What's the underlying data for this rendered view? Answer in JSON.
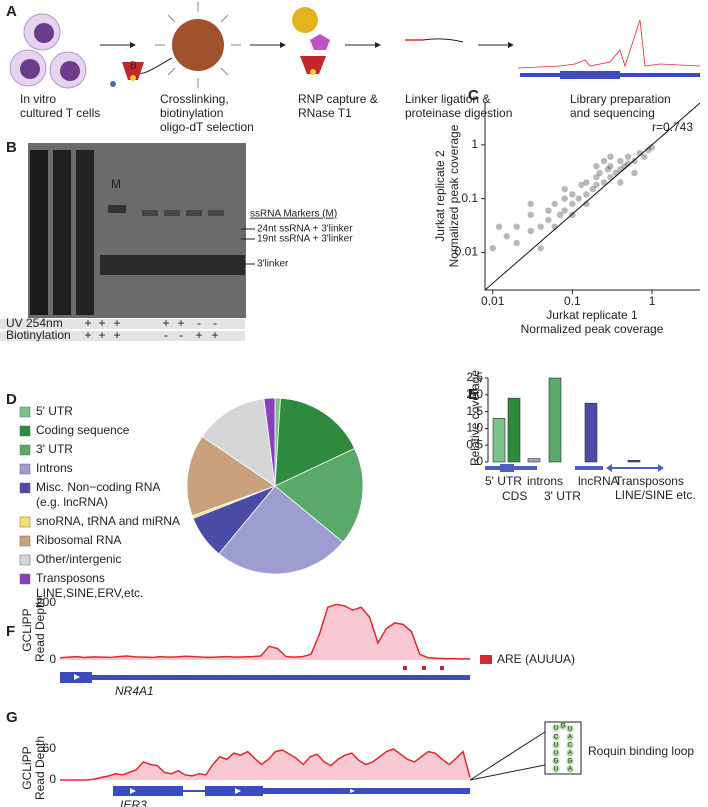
{
  "panel_labels": [
    "A",
    "B",
    "C",
    "D",
    "E",
    "F",
    "G"
  ],
  "workflow": {
    "steps": [
      [
        "In vitro",
        "cultured T cells"
      ],
      [
        "Crosslinking,",
        "biotinylation",
        "oligo-dT selection"
      ],
      [
        "RNP capture &",
        "RNase T1"
      ],
      [
        "Linker ligation &",
        "proteinase digestion"
      ],
      [
        "Library preparation",
        "and sequencing"
      ]
    ],
    "bead_label": "B"
  },
  "gel": {
    "marker_lane": "M",
    "legend_title": "ssRNA Markers (M)",
    "bands": [
      "24nt ssRNA + 3'linker",
      "19nt ssRNA + 3'linker",
      "3'linker"
    ],
    "rows": [
      {
        "name": "UV 254nm",
        "lanes": [
          "+",
          "+",
          "+",
          null,
          "+",
          "+",
          "-",
          "-"
        ]
      },
      {
        "name": "Biotinylation",
        "lanes": [
          "+",
          "+",
          "+",
          null,
          "-",
          "-",
          "+",
          "+"
        ]
      }
    ]
  },
  "chart_data": [
    {
      "type": "scatter",
      "annotation": "r=0.743",
      "x_label": [
        "Jurkat replicate 1",
        "Normalized peak coverage"
      ],
      "y_label": [
        "Jurkat replicate 2",
        "Normalized peak coverage"
      ],
      "log_scale": true,
      "color": "#333333",
      "xlim": [
        0.008,
        4
      ],
      "ylim": [
        0.002,
        6
      ],
      "xticks": [
        0.01,
        0.1,
        1
      ],
      "yticks": [
        0.01,
        0.1,
        1
      ],
      "points": [
        [
          0.01,
          0.012
        ],
        [
          0.015,
          0.02
        ],
        [
          0.02,
          0.015
        ],
        [
          0.02,
          0.03
        ],
        [
          0.03,
          0.025
        ],
        [
          0.03,
          0.05
        ],
        [
          0.04,
          0.03
        ],
        [
          0.05,
          0.06
        ],
        [
          0.05,
          0.04
        ],
        [
          0.06,
          0.08
        ],
        [
          0.07,
          0.05
        ],
        [
          0.08,
          0.1
        ],
        [
          0.08,
          0.06
        ],
        [
          0.1,
          0.12
        ],
        [
          0.1,
          0.08
        ],
        [
          0.12,
          0.1
        ],
        [
          0.13,
          0.18
        ],
        [
          0.15,
          0.12
        ],
        [
          0.15,
          0.2
        ],
        [
          0.18,
          0.15
        ],
        [
          0.2,
          0.25
        ],
        [
          0.2,
          0.18
        ],
        [
          0.22,
          0.3
        ],
        [
          0.25,
          0.2
        ],
        [
          0.28,
          0.35
        ],
        [
          0.3,
          0.25
        ],
        [
          0.3,
          0.4
        ],
        [
          0.35,
          0.3
        ],
        [
          0.4,
          0.5
        ],
        [
          0.4,
          0.35
        ],
        [
          0.45,
          0.4
        ],
        [
          0.5,
          0.6
        ],
        [
          0.5,
          0.45
        ],
        [
          0.6,
          0.5
        ],
        [
          0.7,
          0.7
        ],
        [
          0.8,
          0.6
        ],
        [
          0.9,
          0.8
        ],
        [
          1,
          0.9
        ],
        [
          0.03,
          0.08
        ],
        [
          0.06,
          0.03
        ],
        [
          0.1,
          0.05
        ],
        [
          0.2,
          0.4
        ],
        [
          0.4,
          0.2
        ],
        [
          0.08,
          0.15
        ],
        [
          0.15,
          0.08
        ],
        [
          0.012,
          0.03
        ],
        [
          0.25,
          0.5
        ],
        [
          0.6,
          0.3
        ],
        [
          0.04,
          0.012
        ],
        [
          0.3,
          0.6
        ]
      ]
    },
    {
      "type": "pie",
      "categories": [
        [
          "5' UTR"
        ],
        [
          "Coding sequence"
        ],
        [
          "3' UTR"
        ],
        [
          "Introns"
        ],
        [
          "Misc. Non−coding RNA",
          "(e.g. lncRNA)"
        ],
        [
          "snoRNA, tRNA and miRNA"
        ],
        [
          "Ribosomal RNA"
        ],
        [
          "Other/intergenic"
        ],
        [
          "Transposons",
          "LINE,SINE,ERV,etc."
        ]
      ],
      "values": [
        1,
        17,
        18,
        25,
        8,
        0.5,
        15,
        13.5,
        2
      ],
      "colors": [
        "#7cc08a",
        "#2e8b3e",
        "#5aa86a",
        "#9d9dd2",
        "#4b4ba8",
        "#f2e36b",
        "#c9a27d",
        "#d6d6d6",
        "#8a3fbf"
      ]
    },
    {
      "type": "bar",
      "y_label": "Relative coverage",
      "categories": [
        [
          "5' UTR"
        ],
        [
          "CDS"
        ],
        [
          "introns"
        ],
        [
          "3' UTR"
        ],
        [
          "lncRNA"
        ],
        [
          "Transposons",
          "LINE/SINE etc."
        ]
      ],
      "values": [
        1.3,
        1.9,
        0.1,
        2.5,
        1.75,
        0.05
      ],
      "colors": [
        "#7cc08a",
        "#2e8b3e",
        "#9d9dd2",
        "#5aa86a",
        "#4b4ba8",
        "#4b4ba8"
      ],
      "ylim": [
        0,
        2.5
      ],
      "yticks": [
        0,
        0.5,
        {
          "value": 1,
          "label": "1.0"
        },
        1.5,
        {
          "value": 2,
          "label": "2.0"
        },
        2.5
      ]
    },
    {
      "type": "coverage",
      "gene": "NR4A1",
      "y_label": [
        "GCLiPP",
        "Read Depth"
      ],
      "legend": "ARE (AUUUA)",
      "color": "#e0282e",
      "ylim": [
        0,
        200
      ],
      "yticks": [
        0,
        200
      ],
      "values": [
        8,
        10,
        12,
        9,
        11,
        10,
        9,
        12,
        14,
        11,
        10,
        9,
        12,
        10,
        11,
        13,
        12,
        10,
        9,
        11,
        12,
        10,
        11,
        12,
        14,
        48,
        40,
        12,
        10,
        12,
        20,
        90,
        185,
        195,
        190,
        175,
        185,
        150,
        60,
        110,
        130,
        125,
        100,
        20,
        8,
        6,
        5,
        5,
        4,
        4
      ]
    },
    {
      "type": "coverage",
      "gene": "IER3",
      "y_label": [
        "GCLiPP",
        "Read Depth"
      ],
      "annotation": "Roquin binding loop",
      "loop": [
        "U",
        "G",
        "U",
        "C",
        "U",
        "U",
        "G",
        "U",
        "A",
        "C",
        "A",
        "G",
        "A"
      ],
      "color": "#e0282e",
      "ylim": [
        0,
        60
      ],
      "yticks": [
        0,
        60
      ],
      "values": [
        0,
        0,
        0,
        0,
        0,
        2,
        5,
        8,
        12,
        10,
        15,
        20,
        35,
        30,
        28,
        15,
        12,
        18,
        10,
        8,
        12,
        10,
        30,
        45,
        40,
        52,
        48,
        55,
        42,
        30,
        40,
        55,
        58,
        50,
        42,
        30,
        45,
        50,
        35,
        28,
        40,
        48,
        52,
        38,
        30,
        35,
        45,
        55,
        60,
        50,
        40,
        35,
        45,
        55,
        52,
        40,
        30,
        42,
        55,
        5
      ]
    }
  ]
}
